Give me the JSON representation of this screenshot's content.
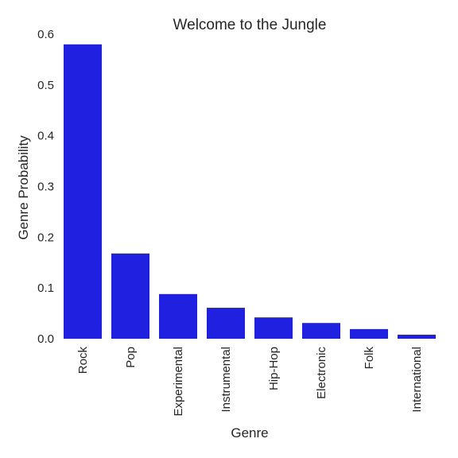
{
  "chart_data": {
    "type": "bar",
    "title": "Welcome to the Jungle",
    "xlabel": "Genre",
    "ylabel": "Genre Probability",
    "categories": [
      "Rock",
      "Pop",
      "Experimental",
      "Instrumental",
      "Hip-Hop",
      "Electronic",
      "Folk",
      "International"
    ],
    "values": [
      0.58,
      0.168,
      0.088,
      0.061,
      0.042,
      0.031,
      0.019,
      0.008
    ],
    "ylim": [
      0,
      0.6
    ],
    "yticks": [
      "0.0",
      "0.1",
      "0.2",
      "0.3",
      "0.4",
      "0.5",
      "0.6"
    ],
    "grid": false,
    "bar_color": "#2020e0"
  }
}
